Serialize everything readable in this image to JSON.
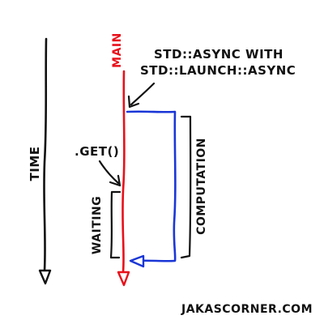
{
  "labels": {
    "time": "TIME",
    "main": "MAIN",
    "async_line1": "STD::ASYNC WITH",
    "async_line2": "STD::LAUNCH::ASYNC",
    "get": ".GET()",
    "waiting": "WAITING",
    "computation": "COMPUTATION",
    "credit": "JAKASCORNER.COM"
  },
  "colors": {
    "ink": "#111111",
    "main_thread": "#e8101a",
    "async_thread": "#1a36d6",
    "background": "#ffffff"
  }
}
